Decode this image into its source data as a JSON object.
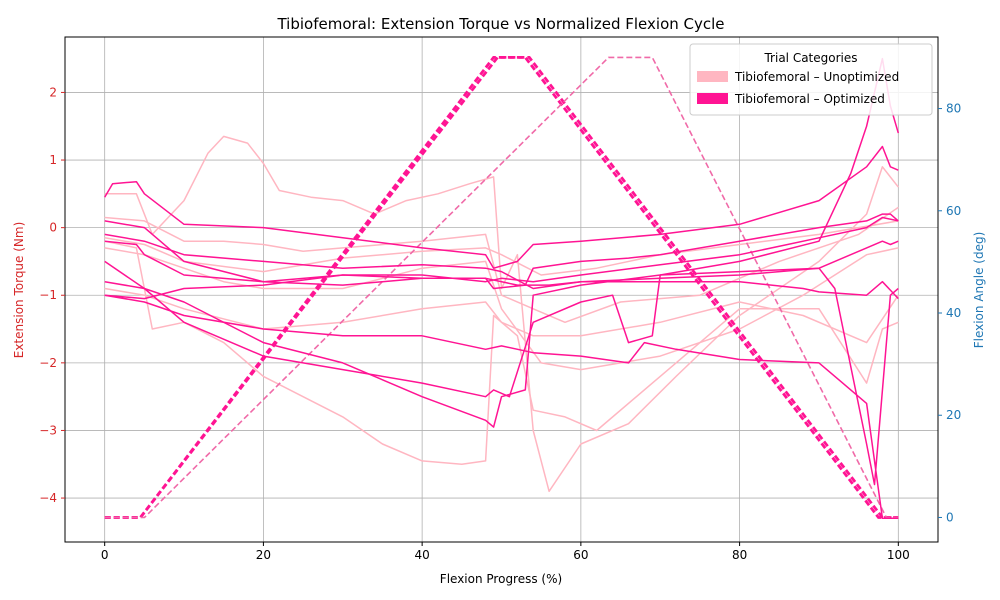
{
  "chart_data": {
    "type": "line",
    "title": "Tibiofemoral: Extension Torque vs Normalized Flexion Cycle",
    "xlabel": "Flexion Progress (%)",
    "ylabel_left": "Extension Torque (Nm)",
    "ylabel_right": "Flexion Angle (deg)",
    "xlim": [
      -5,
      105
    ],
    "ylim_left": [
      -4.65,
      2.82
    ],
    "ylim_right": [
      -4.8,
      94
    ],
    "xticks": [
      0,
      20,
      40,
      60,
      80,
      100
    ],
    "yticks_left": [
      -4,
      -3,
      -2,
      -1,
      0,
      1,
      2
    ],
    "yticks_left_labels": [
      "−4",
      "−3",
      "−2",
      "−1",
      "0",
      "1",
      "2"
    ],
    "yticks_right": [
      0,
      20,
      40,
      60,
      80
    ],
    "grid": true,
    "legend": {
      "title": "Trial Categories",
      "placement": "top-right",
      "entries": [
        {
          "label": "Tibiofemoral – Unoptimized",
          "color": "#ffb6c1"
        },
        {
          "label": "Tibiofemoral – Optimized",
          "color": "#ff1493"
        }
      ]
    },
    "colors": {
      "unoptimized": "#ffb6c1",
      "optimized": "#ff1493",
      "optimized_angle": "#ff1493",
      "unoptimized_angle": "#f06aa8",
      "left_axis": "#d62728",
      "right_axis": "#1f77b4"
    },
    "angle_profiles": [
      {
        "category": "optimized",
        "x": [
          0,
          4.5,
          49,
          53,
          97.5,
          100
        ],
        "y": [
          0,
          0,
          90,
          90,
          0,
          0
        ]
      },
      {
        "category": "optimized",
        "x": [
          0,
          4.5,
          49.5,
          53.5,
          98,
          100
        ],
        "y": [
          0,
          0,
          90,
          90,
          0,
          0
        ]
      },
      {
        "category": "unoptimized",
        "x": [
          0,
          5,
          63.5,
          69,
          98.5,
          100
        ],
        "y": [
          0,
          0,
          90,
          90,
          0,
          0
        ]
      }
    ],
    "torque_series": [
      {
        "category": "unoptimized",
        "x": [
          0,
          4,
          6,
          10,
          13,
          15,
          18,
          20,
          22,
          26,
          30,
          34,
          38,
          42,
          46,
          49,
          50,
          52,
          54,
          56,
          60,
          66,
          72,
          80,
          90,
          96,
          98,
          100
        ],
        "y": [
          0.5,
          0.5,
          -0.1,
          0.4,
          1.1,
          1.35,
          1.25,
          0.95,
          0.55,
          0.45,
          0.4,
          0.2,
          0.4,
          0.5,
          0.65,
          0.75,
          -0.9,
          -0.4,
          -3.0,
          -3.9,
          -3.2,
          -2.9,
          -2.2,
          -1.3,
          -0.5,
          0.2,
          0.9,
          0.6
        ]
      },
      {
        "category": "unoptimized",
        "x": [
          0,
          4,
          6,
          10,
          15,
          20,
          25,
          30,
          35,
          40,
          45,
          48,
          49,
          52,
          54,
          58,
          62,
          70,
          80,
          90,
          96,
          98,
          100
        ],
        "y": [
          -0.2,
          -0.3,
          -1.5,
          -1.4,
          -1.7,
          -2.2,
          -2.5,
          -2.8,
          -3.2,
          -3.45,
          -3.5,
          -3.45,
          -1.3,
          -1.6,
          -2.7,
          -2.8,
          -3.0,
          -2.2,
          -1.2,
          -1.2,
          -2.3,
          -1.5,
          -1.4
        ]
      },
      {
        "category": "unoptimized",
        "x": [
          0,
          5,
          10,
          15,
          20,
          25,
          30,
          40,
          48,
          50,
          54,
          58,
          65,
          75,
          85,
          95,
          100
        ],
        "y": [
          0.15,
          0.1,
          -0.2,
          -0.2,
          -0.25,
          -0.35,
          -0.3,
          -0.2,
          -0.1,
          -1.0,
          -1.2,
          -1.4,
          -1.1,
          -1.0,
          -0.5,
          -0.1,
          0.3
        ]
      },
      {
        "category": "unoptimized",
        "x": [
          0,
          5,
          10,
          15,
          20,
          30,
          40,
          48,
          50,
          55,
          60,
          70,
          80,
          88,
          96,
          100
        ],
        "y": [
          -0.3,
          -0.4,
          -0.6,
          -0.8,
          -0.9,
          -0.9,
          -0.6,
          -0.5,
          -1.2,
          -2.0,
          -2.1,
          -1.9,
          -1.5,
          -1.0,
          -0.4,
          -0.3
        ]
      },
      {
        "category": "unoptimized",
        "x": [
          0,
          5,
          10,
          20,
          30,
          40,
          48,
          50,
          54,
          60,
          70,
          80,
          88,
          96,
          100
        ],
        "y": [
          -0.9,
          -1.0,
          -1.2,
          -1.5,
          -1.4,
          -1.2,
          -1.1,
          -1.4,
          -1.6,
          -1.6,
          -1.4,
          -1.1,
          -1.3,
          -1.7,
          -1.0
        ]
      },
      {
        "category": "unoptimized",
        "x": [
          0,
          5,
          10,
          20,
          30,
          40,
          48,
          50,
          55,
          62,
          70,
          80,
          90,
          100
        ],
        "y": [
          -0.15,
          -0.25,
          -0.5,
          -0.65,
          -0.45,
          -0.35,
          -0.3,
          -0.4,
          -0.7,
          -0.6,
          -0.4,
          -0.25,
          -0.1,
          0.1
        ]
      },
      {
        "category": "optimized",
        "x": [
          0,
          1,
          4,
          5,
          10,
          20,
          30,
          40,
          48,
          49,
          52,
          54,
          60,
          70,
          80,
          90,
          96,
          98,
          99,
          100
        ],
        "y": [
          0.45,
          0.65,
          0.68,
          0.5,
          0.05,
          0.0,
          -0.15,
          -0.3,
          -0.4,
          -0.6,
          -0.5,
          -0.25,
          -0.2,
          -0.1,
          0.05,
          0.4,
          0.9,
          1.2,
          0.9,
          0.85
        ]
      },
      {
        "category": "optimized",
        "x": [
          0,
          5,
          10,
          20,
          30,
          40,
          48,
          49,
          53,
          54,
          60,
          66,
          70,
          80,
          90,
          96,
          98,
          99,
          100
        ],
        "y": [
          0.1,
          0.0,
          -0.5,
          -0.8,
          -0.85,
          -0.75,
          -0.75,
          -0.9,
          -0.85,
          -0.6,
          -0.5,
          -0.45,
          -0.4,
          -0.2,
          0.0,
          0.1,
          0.2,
          0.2,
          0.1
        ]
      },
      {
        "category": "optimized",
        "x": [
          0,
          4,
          5,
          10,
          20,
          30,
          40,
          48,
          50,
          54,
          60,
          70,
          80,
          90,
          96,
          98,
          100
        ],
        "y": [
          -0.2,
          -0.25,
          -0.4,
          -0.7,
          -0.8,
          -0.7,
          -0.7,
          -0.8,
          -0.75,
          -0.8,
          -0.7,
          -0.55,
          -0.4,
          -0.15,
          0.0,
          0.15,
          0.1
        ]
      },
      {
        "category": "optimized",
        "x": [
          0,
          5,
          10,
          20,
          30,
          40,
          48,
          50,
          54,
          60,
          66,
          68,
          72,
          80,
          90,
          96,
          98,
          100
        ],
        "y": [
          -1.0,
          -1.1,
          -1.3,
          -1.5,
          -1.6,
          -1.6,
          -1.8,
          -1.75,
          -1.85,
          -1.9,
          -2.0,
          -1.7,
          -1.8,
          -1.95,
          -2.0,
          -2.6,
          -4.3,
          -4.3
        ]
      },
      {
        "category": "optimized",
        "x": [
          0,
          5,
          10,
          20,
          30,
          40,
          48,
          49,
          51,
          54,
          60,
          64,
          66,
          69,
          70,
          80,
          90,
          92,
          96,
          97,
          99,
          100
        ],
        "y": [
          -0.8,
          -0.9,
          -1.4,
          -1.9,
          -2.1,
          -2.3,
          -2.5,
          -2.4,
          -2.5,
          -1.4,
          -1.1,
          -1.0,
          -1.7,
          -1.6,
          -0.7,
          -0.65,
          -0.6,
          -0.9,
          -3.2,
          -3.8,
          -1.0,
          -0.9
        ]
      },
      {
        "category": "optimized",
        "x": [
          0,
          5,
          10,
          20,
          30,
          40,
          48,
          49,
          50,
          53,
          54,
          60,
          70,
          80,
          90,
          94,
          96,
          97,
          98,
          99,
          100
        ],
        "y": [
          -0.5,
          -0.9,
          -1.1,
          -1.7,
          -2.0,
          -2.5,
          -2.85,
          -2.95,
          -2.5,
          -2.4,
          -1.0,
          -0.85,
          -0.7,
          -0.5,
          -0.2,
          0.8,
          1.5,
          2.0,
          2.5,
          1.8,
          1.4
        ]
      },
      {
        "category": "optimized",
        "x": [
          0,
          5,
          10,
          20,
          30,
          40,
          48,
          50,
          54,
          60,
          70,
          80,
          90,
          96,
          98,
          99,
          100
        ],
        "y": [
          -0.1,
          -0.2,
          -0.4,
          -0.5,
          -0.6,
          -0.55,
          -0.6,
          -0.65,
          -0.9,
          -0.8,
          -0.75,
          -0.7,
          -0.6,
          -0.3,
          -0.2,
          -0.25,
          -0.2
        ]
      },
      {
        "category": "optimized",
        "x": [
          0,
          5,
          10,
          20,
          30,
          40,
          48,
          52,
          56,
          60,
          70,
          80,
          88,
          90,
          96,
          98,
          100
        ],
        "y": [
          -1.0,
          -1.05,
          -0.9,
          -0.85,
          -0.7,
          -0.75,
          -0.75,
          -0.85,
          -0.85,
          -0.8,
          -0.8,
          -0.8,
          -0.9,
          -0.95,
          -1.0,
          -0.8,
          -1.05
        ]
      }
    ]
  }
}
